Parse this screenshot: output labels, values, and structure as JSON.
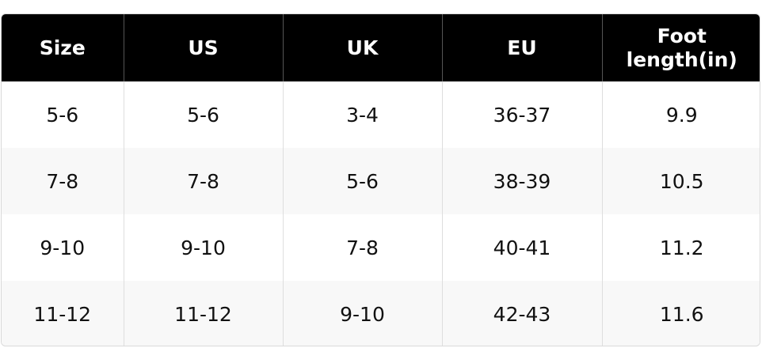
{
  "table": {
    "header": [
      "Size",
      "US",
      "UK",
      "EU",
      "Foot length(in)"
    ],
    "rows": [
      [
        "5-6",
        "5-6",
        "3-4",
        "36-37",
        "9.9"
      ],
      [
        "7-8",
        "7-8",
        "5-6",
        "38-39",
        "10.5"
      ],
      [
        "9-10",
        "9-10",
        "7-8",
        "40-41",
        "11.2"
      ],
      [
        "11-12",
        "11-12",
        "9-10",
        "42-43",
        "11.6"
      ]
    ]
  }
}
